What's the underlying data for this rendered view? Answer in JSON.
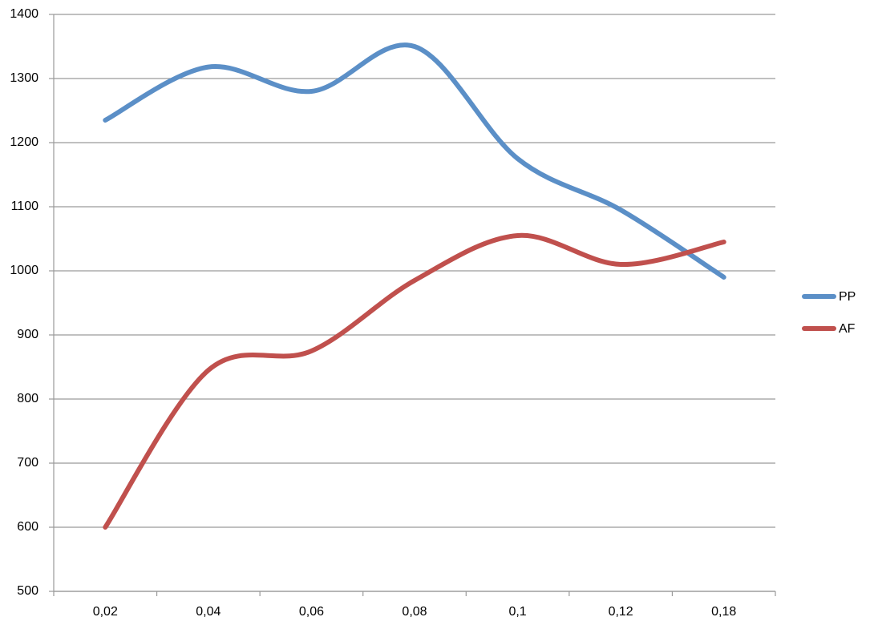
{
  "chart_data": {
    "type": "line",
    "categories": [
      "0,02",
      "0,04",
      "0,06",
      "0,08",
      "0,1",
      "0,12",
      "0,18"
    ],
    "series": [
      {
        "name": "PP",
        "color": "#5b8fc7",
        "values": [
          1235,
          1318,
          1280,
          1350,
          1175,
          1095,
          990
        ]
      },
      {
        "name": "AF",
        "color": "#c0504d",
        "values": [
          600,
          845,
          875,
          985,
          1055,
          1010,
          1045
        ]
      }
    ],
    "ylim": [
      500,
      1400
    ],
    "yticks": [
      500,
      600,
      700,
      800,
      900,
      1000,
      1100,
      1200,
      1300,
      1400
    ],
    "grid": true,
    "smooth": true,
    "legend": "right"
  }
}
